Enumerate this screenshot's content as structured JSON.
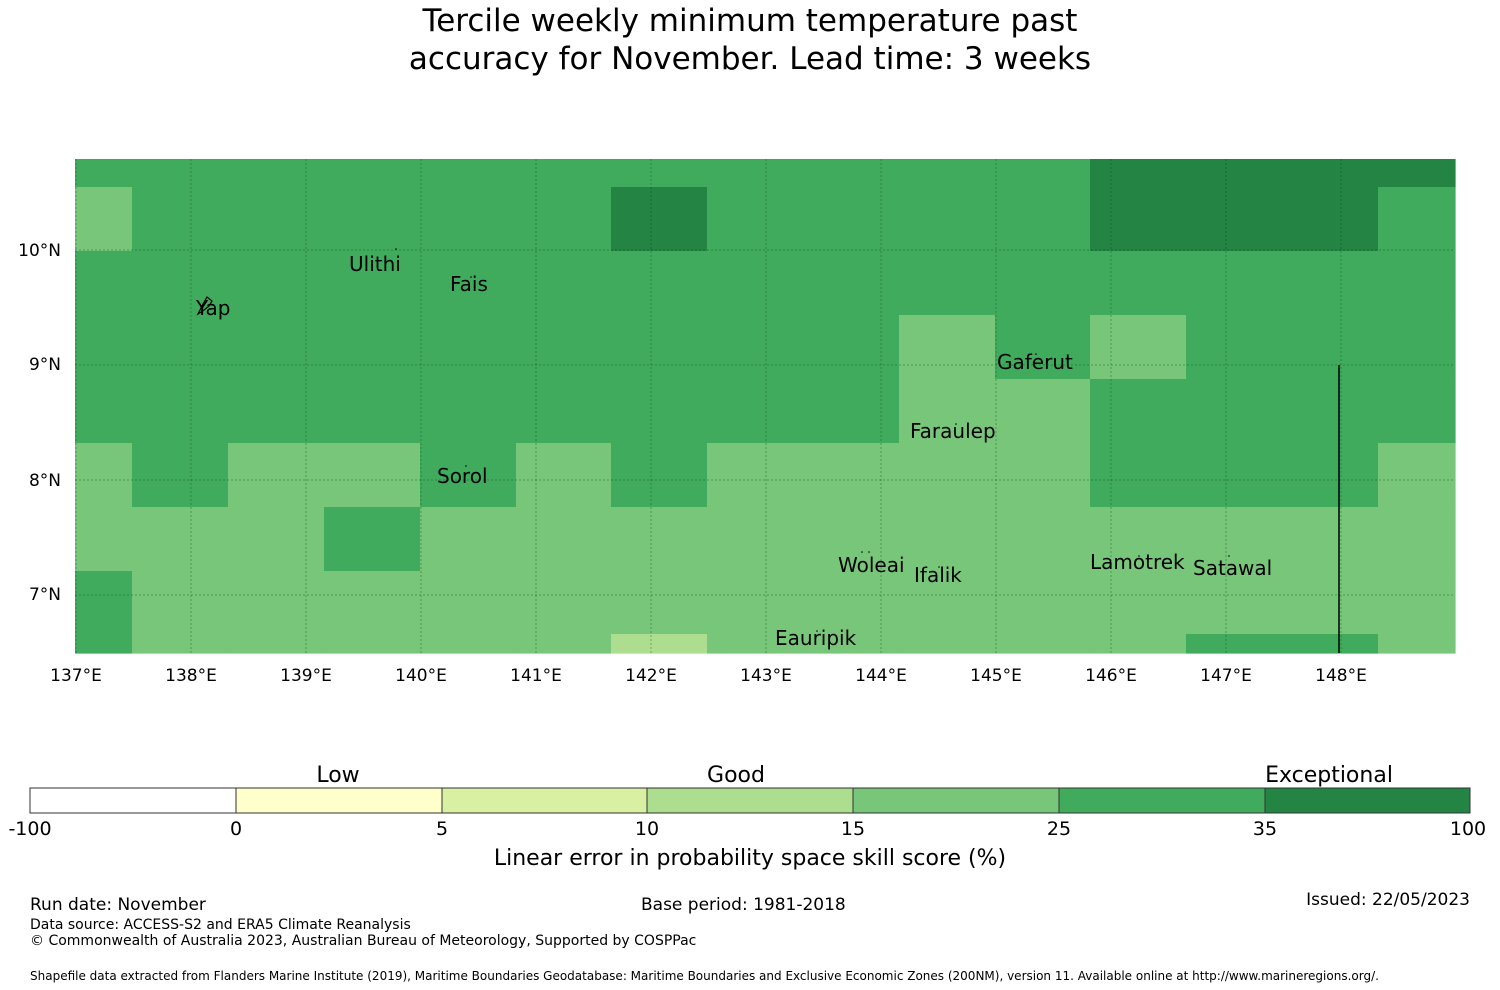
{
  "title": {
    "line1": "Tercile weekly minimum temperature past",
    "line2": "accuracy for November. Lead time: 3 weeks"
  },
  "map": {
    "lon_range": [
      137,
      149
    ],
    "lat_range": [
      6.5,
      10.8
    ],
    "lon_ticks": [
      "137°E",
      "138°E",
      "139°E",
      "140°E",
      "141°E",
      "142°E",
      "143°E",
      "144°E",
      "145°E",
      "146°E",
      "147°E",
      "148°E"
    ],
    "lat_ticks": [
      "10°N",
      "9°N",
      "8°N",
      "7°N"
    ],
    "gridlines": true,
    "places": [
      {
        "name": "Yap"
      },
      {
        "name": "Ulithi"
      },
      {
        "name": "Fais"
      },
      {
        "name": "Gaferut"
      },
      {
        "name": "Faraulep"
      },
      {
        "name": "Sorol"
      },
      {
        "name": "Woleai"
      },
      {
        "name": "Ifalik"
      },
      {
        "name": "Lamotrek"
      },
      {
        "name": "Satawal"
      },
      {
        "name": "Eauripik"
      }
    ]
  },
  "colors": {
    "c15_25": "#78c679",
    "c25_35": "#41ab5d",
    "c35_100": "#238443",
    "c10_15": "#addd8e"
  },
  "legend": {
    "categories": [
      "Low",
      "Good",
      "Exceptional"
    ],
    "bins": [
      {
        "from": "-100",
        "to": "0",
        "color": "#ffffff"
      },
      {
        "from": "0",
        "to": "5",
        "color": "#ffffcc"
      },
      {
        "from": "5",
        "to": "10",
        "color": "#d9f0a3"
      },
      {
        "from": "10",
        "to": "15",
        "color": "#addd8e"
      },
      {
        "from": "15",
        "to": "25",
        "color": "#78c679"
      },
      {
        "from": "25",
        "to": "35",
        "color": "#41ab5d"
      },
      {
        "from": "35",
        "to": "100",
        "color": "#238443"
      }
    ],
    "ticks": [
      "-100",
      "0",
      "5",
      "10",
      "15",
      "25",
      "35",
      "100"
    ],
    "label": "Linear error in probability space skill score (%)"
  },
  "footer": {
    "run_date": "Run date: November",
    "base_period": "Base period: 1981-2018",
    "issued": "Issued: 22/05/2023",
    "data_source": "Data source: ACCESS-S2 and ERA5 Climate Reanalysis",
    "copyright": "© Commonwealth of Australia 2023, Australian Bureau of Meteorology, Supported by COSPPac",
    "shapefile": "Shapefile data extracted from Flanders Marine Institute (2019), Maritime Boundaries Geodatabase: Maritime Boundaries and Exclusive Economic Zones (200NM), version 11. Available online at http://www.marineregions.org/."
  }
}
